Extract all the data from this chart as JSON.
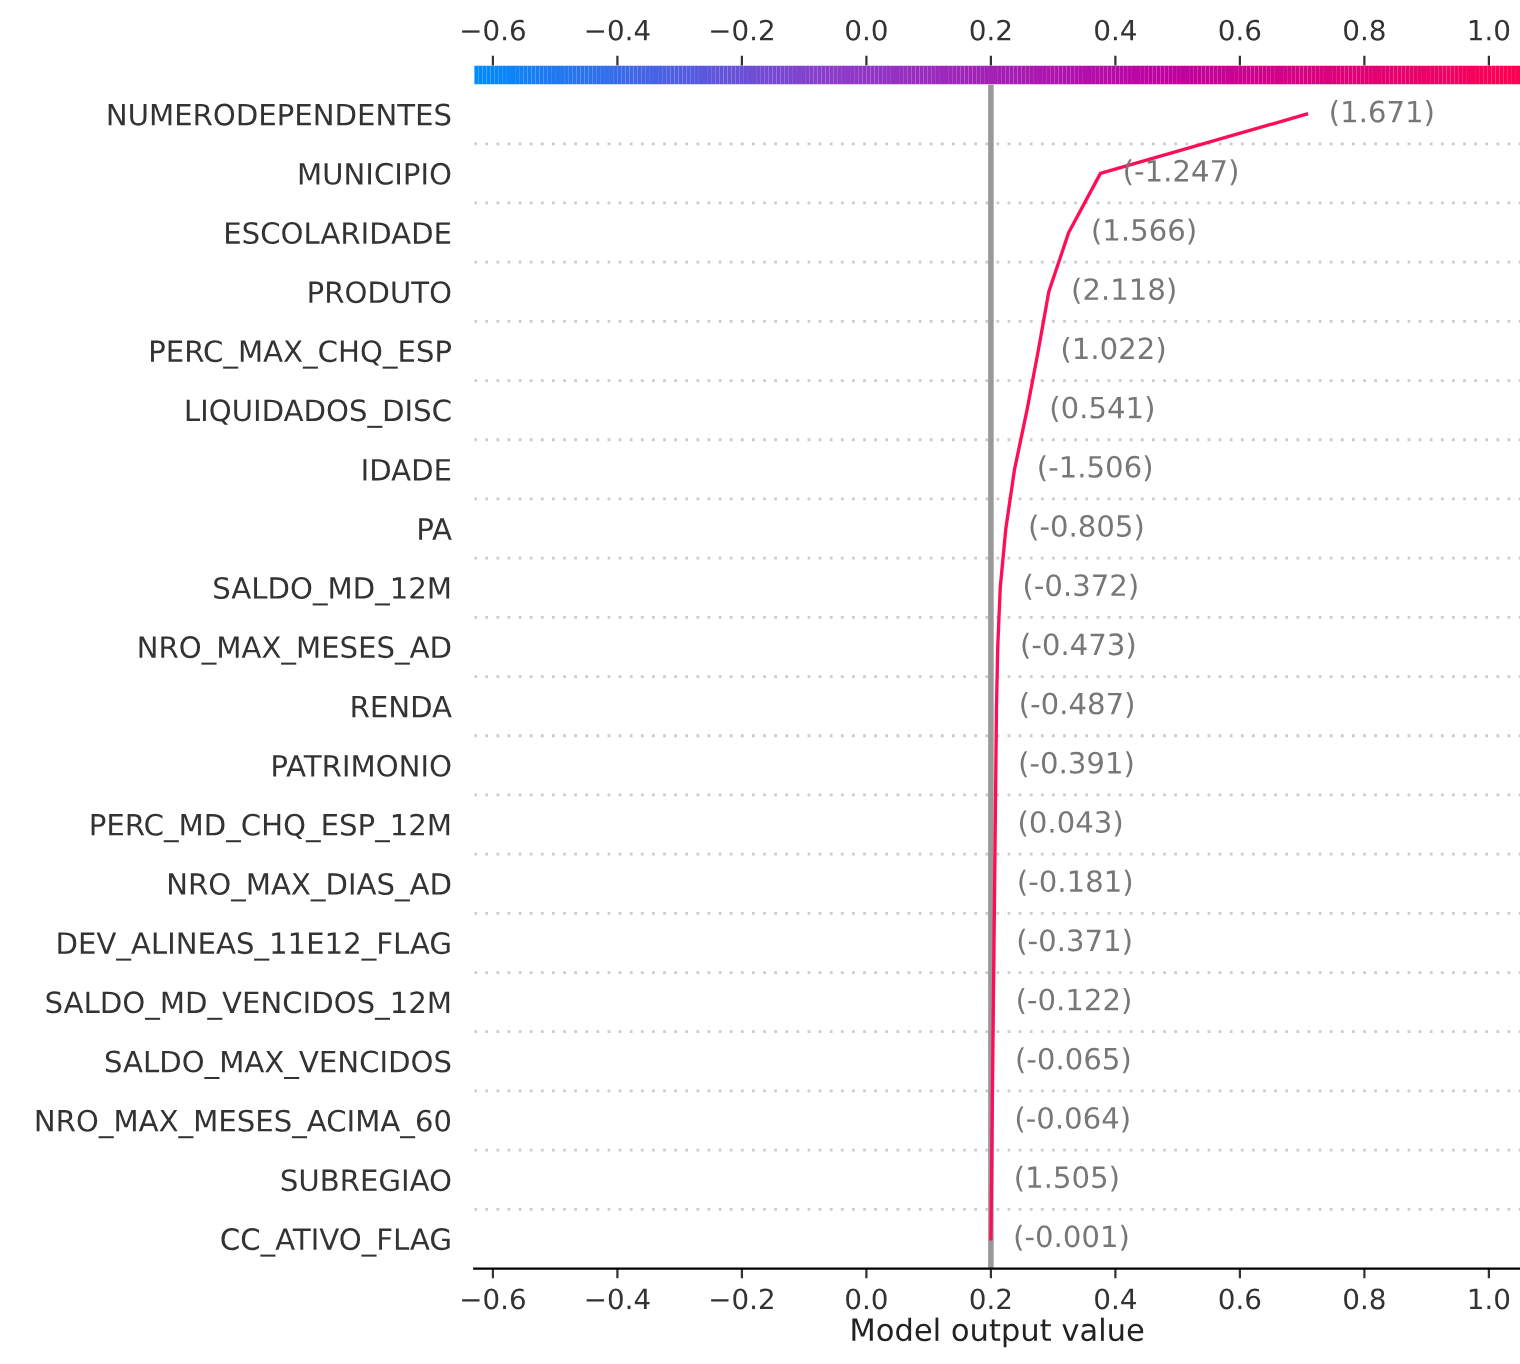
{
  "chart_data": {
    "type": "line",
    "orientation": "horizontal",
    "xlabel": "Model output value",
    "categories": [
      "NUMERODEPENDENTES",
      "MUNICIPIO",
      "ESCOLARIDADE",
      "PRODUTO",
      "PERC_MAX_CHQ_ESP",
      "LIQUIDADOS_DISC",
      "IDADE",
      "PA",
      "SALDO_MD_12M",
      "NRO_MAX_MESES_AD",
      "RENDA",
      "PATRIMONIO",
      "PERC_MD_CHQ_ESP_12M",
      "NRO_MAX_DIAS_AD",
      "DEV_ALINEAS_11E12_FLAG",
      "SALDO_MD_VENCIDOS_12M",
      "SALDO_MAX_VENCIDOS",
      "NRO_MAX_MESES_ACIMA_60",
      "SUBREGIAO",
      "CC_ATIVO_FLAG"
    ],
    "series": [
      {
        "color": "#ff0d57",
        "values": [
          0.707,
          0.376,
          0.325,
          0.293,
          0.276,
          0.258,
          0.238,
          0.224,
          0.215,
          0.211,
          0.209,
          0.208,
          0.207,
          0.206,
          0.205,
          0.204,
          0.203,
          0.202,
          0.201,
          0.2
        ]
      }
    ],
    "xlim": [
      -0.63,
      1.05
    ],
    "xticks": [
      {
        "value": -0.6,
        "label": "−0.6"
      },
      {
        "value": -0.4,
        "label": "−0.4"
      },
      {
        "value": -0.2,
        "label": "−0.2"
      },
      {
        "value": 0.0,
        "label": "0.0"
      },
      {
        "value": 0.2,
        "label": "0.2"
      },
      {
        "value": 0.4,
        "label": "0.4"
      },
      {
        "value": 0.6,
        "label": "0.6"
      },
      {
        "value": 0.8,
        "label": "0.8"
      },
      {
        "value": 1.0,
        "label": "1.0"
      }
    ],
    "clim": [
      -0.63,
      1.05
    ],
    "cticks": [
      {
        "value": -0.6,
        "label": "−0.6"
      },
      {
        "value": -0.4,
        "label": "−0.4"
      },
      {
        "value": -0.2,
        "label": "−0.2"
      },
      {
        "value": 0.0,
        "label": "0.0"
      },
      {
        "value": 0.2,
        "label": "0.2"
      },
      {
        "value": 0.4,
        "label": "0.4"
      },
      {
        "value": 0.6,
        "label": "0.6"
      },
      {
        "value": 0.8,
        "label": "0.8"
      },
      {
        "value": 1.0,
        "label": "1.0"
      }
    ],
    "ref_lines": [
      {
        "axis": "x",
        "value": 0.2,
        "color": "#999999"
      }
    ],
    "grid": "y",
    "annotations": [
      "(1.671)",
      "(-1.247)",
      "(1.566)",
      "(2.118)",
      "(1.022)",
      "(0.541)",
      "(-1.506)",
      "(-0.805)",
      "(-0.372)",
      "(-0.473)",
      "(-0.487)",
      "(-0.391)",
      "(0.043)",
      "(-0.181)",
      "(-0.371)",
      "(-0.122)",
      "(-0.065)",
      "(-0.064)",
      "(1.505)",
      "(-0.001)"
    ]
  }
}
